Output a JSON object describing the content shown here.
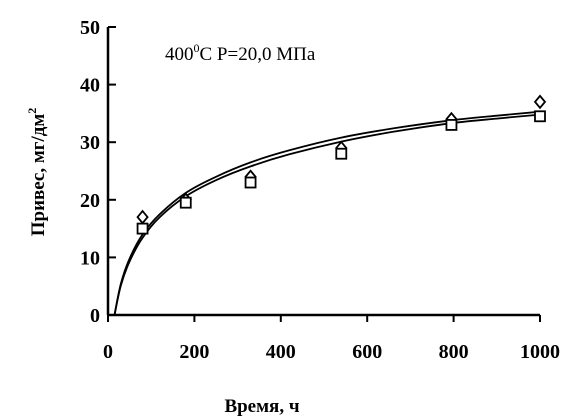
{
  "chart_data": {
    "type": "scatter",
    "annotation": {
      "main": "400",
      "sup": "0",
      "rest": "C P=20,0  МПа"
    },
    "xlabel": "Время, ч",
    "ylabel": {
      "main": "Привес, мг/дм",
      "sup": "2"
    },
    "xlim": [
      0,
      1000
    ],
    "ylim": [
      0,
      50
    ],
    "xticks": [
      0,
      200,
      400,
      600,
      800,
      1000
    ],
    "yticks": [
      0,
      10,
      20,
      30,
      40,
      50
    ],
    "grid": false,
    "series": [
      {
        "marker": "diamond",
        "x": [
          80,
          180,
          330,
          540,
          795,
          1000
        ],
        "y": [
          17,
          20,
          24,
          29,
          34,
          37
        ]
      },
      {
        "marker": "square",
        "x": [
          80,
          180,
          330,
          540,
          795,
          1000
        ],
        "y": [
          15,
          19.5,
          23,
          28,
          33,
          34.5
        ]
      }
    ],
    "fits": [
      {
        "x": [
          15,
          30,
          50,
          80,
          120,
          180,
          250,
          330,
          420,
          540,
          660,
          795,
          900,
          1000
        ],
        "y": [
          0,
          5.5,
          9.8,
          14,
          17.5,
          21.2,
          24,
          26.5,
          28.6,
          30.8,
          32.4,
          33.8,
          34.6,
          35.3
        ]
      },
      {
        "x": [
          15,
          30,
          50,
          80,
          120,
          180,
          250,
          330,
          420,
          540,
          660,
          795,
          900,
          1000
        ],
        "y": [
          0,
          5.2,
          9.3,
          13.4,
          17,
          20.6,
          23.4,
          25.8,
          27.9,
          30.1,
          31.8,
          33.3,
          34.1,
          34.8
        ]
      }
    ]
  }
}
